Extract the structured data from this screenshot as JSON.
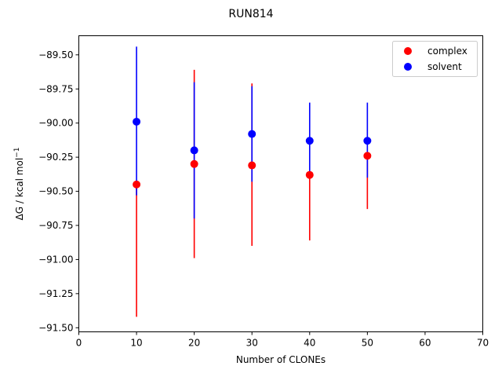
{
  "chart_data": {
    "type": "scatter",
    "title": "RUN814",
    "xlabel": "Number of CLONEs",
    "ylabel_main": "ΔG / kcal mol",
    "ylabel_sup": "−1",
    "xlim": [
      0,
      70
    ],
    "ylim": [
      -91.53,
      -89.36
    ],
    "xticks": [
      0,
      10,
      20,
      30,
      40,
      50,
      60,
      70
    ],
    "xtick_labels": [
      "0",
      "10",
      "20",
      "30",
      "40",
      "50",
      "60",
      "70"
    ],
    "yticks": [
      -91.5,
      -91.25,
      -91.0,
      -90.75,
      -90.5,
      -90.25,
      -90.0,
      -89.75,
      -89.5
    ],
    "ytick_labels": [
      "−91.50",
      "−91.25",
      "−91.00",
      "−90.75",
      "−90.50",
      "−90.25",
      "−90.00",
      "−89.75",
      "−89.50"
    ],
    "grid": false,
    "legend_position": "top-right",
    "series": [
      {
        "name": "complex",
        "color": "#ff0000",
        "x": [
          10,
          20,
          30,
          40,
          50
        ],
        "y": [
          -90.45,
          -90.3,
          -90.31,
          -90.38,
          -90.24
        ],
        "yerr_low": [
          -91.42,
          -90.99,
          -90.9,
          -90.86,
          -90.63
        ],
        "yerr_high": [
          -90.45,
          -89.61,
          -89.71,
          -90.38,
          -90.24
        ]
      },
      {
        "name": "solvent",
        "color": "#0000ff",
        "x": [
          10,
          20,
          30,
          40,
          50
        ],
        "y": [
          -89.99,
          -90.2,
          -90.08,
          -90.13,
          -90.13
        ],
        "yerr_low": [
          -90.53,
          -90.7,
          -90.43,
          -90.4,
          -90.4
        ],
        "yerr_high": [
          -89.44,
          -89.7,
          -89.73,
          -89.85,
          -89.85
        ]
      }
    ]
  }
}
